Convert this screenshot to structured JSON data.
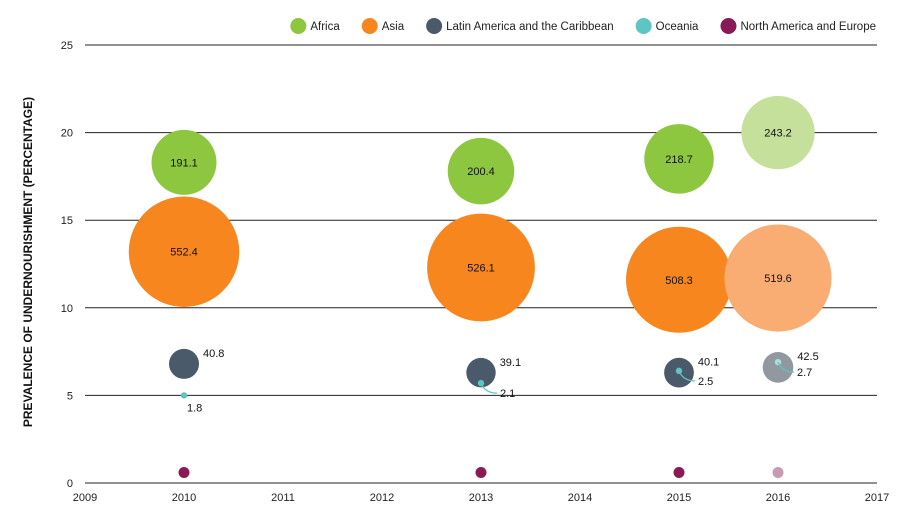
{
  "chart_data": {
    "type": "bubble",
    "ylabel": "PREVALENCE OF UNDERNOURISHMENT (PERCENTAGE)",
    "xlim": [
      2009,
      2017
    ],
    "ylim": [
      0,
      25
    ],
    "x_ticks": [
      "2009",
      "2010",
      "2011",
      "2012",
      "2013",
      "2014",
      "2015",
      "2016",
      "2017"
    ],
    "y_ticks": [
      "0",
      "5",
      "10",
      "15",
      "20",
      "25"
    ],
    "grid": true,
    "legend_position": "top",
    "legend": [
      {
        "name": "Africa",
        "color": "#8dc63f"
      },
      {
        "name": "Asia",
        "color": "#f7861e"
      },
      {
        "name": "Latin America and the Caribbean",
        "color": "#4a5a6a"
      },
      {
        "name": "Oceania",
        "color": "#5ec5c2"
      },
      {
        "name": "North America and Europe",
        "color": "#8a1a55"
      }
    ],
    "series": [
      {
        "name": "Africa",
        "color": "#8dc63f",
        "projected_color": "#c5e09a",
        "points": [
          {
            "x": 2010,
            "y": 18.3,
            "value": "191.1"
          },
          {
            "x": 2013,
            "y": 17.8,
            "value": "200.4"
          },
          {
            "x": 2015,
            "y": 18.5,
            "value": "218.7"
          },
          {
            "x": 2016,
            "y": 20.0,
            "value": "243.2",
            "projected": true
          }
        ]
      },
      {
        "name": "Asia",
        "color": "#f7861e",
        "projected_color": "#f9ad72",
        "points": [
          {
            "x": 2010,
            "y": 13.2,
            "value": "552.4"
          },
          {
            "x": 2013,
            "y": 12.3,
            "value": "526.1"
          },
          {
            "x": 2015,
            "y": 11.6,
            "value": "508.3"
          },
          {
            "x": 2016,
            "y": 11.7,
            "value": "519.6",
            "projected": true
          }
        ]
      },
      {
        "name": "Latin America and the Caribbean",
        "color": "#4a5a6a",
        "projected_color": "#9198a0",
        "points": [
          {
            "x": 2010,
            "y": 6.8,
            "value": "40.8"
          },
          {
            "x": 2013,
            "y": 6.3,
            "value": "39.1"
          },
          {
            "x": 2015,
            "y": 6.3,
            "value": "40.1"
          },
          {
            "x": 2016,
            "y": 6.6,
            "value": "42.5",
            "projected": true
          }
        ]
      },
      {
        "name": "Oceania",
        "color": "#5ec5c2",
        "projected_color": "#a8e0de",
        "points": [
          {
            "x": 2010,
            "y": 5.0,
            "value": "1.8"
          },
          {
            "x": 2013,
            "y": 5.7,
            "value": "2.1"
          },
          {
            "x": 2015,
            "y": 6.4,
            "value": "2.5"
          },
          {
            "x": 2016,
            "y": 6.9,
            "value": "2.7",
            "projected": true
          }
        ]
      },
      {
        "name": "North America and Europe",
        "color": "#8a1a55",
        "projected_color": "#c79ab2",
        "points": [
          {
            "x": 2010,
            "y": 0.6,
            "value": ""
          },
          {
            "x": 2013,
            "y": 0.6,
            "value": ""
          },
          {
            "x": 2015,
            "y": 0.6,
            "value": ""
          },
          {
            "x": 2016,
            "y": 0.6,
            "value": "",
            "projected": true
          }
        ]
      }
    ]
  }
}
